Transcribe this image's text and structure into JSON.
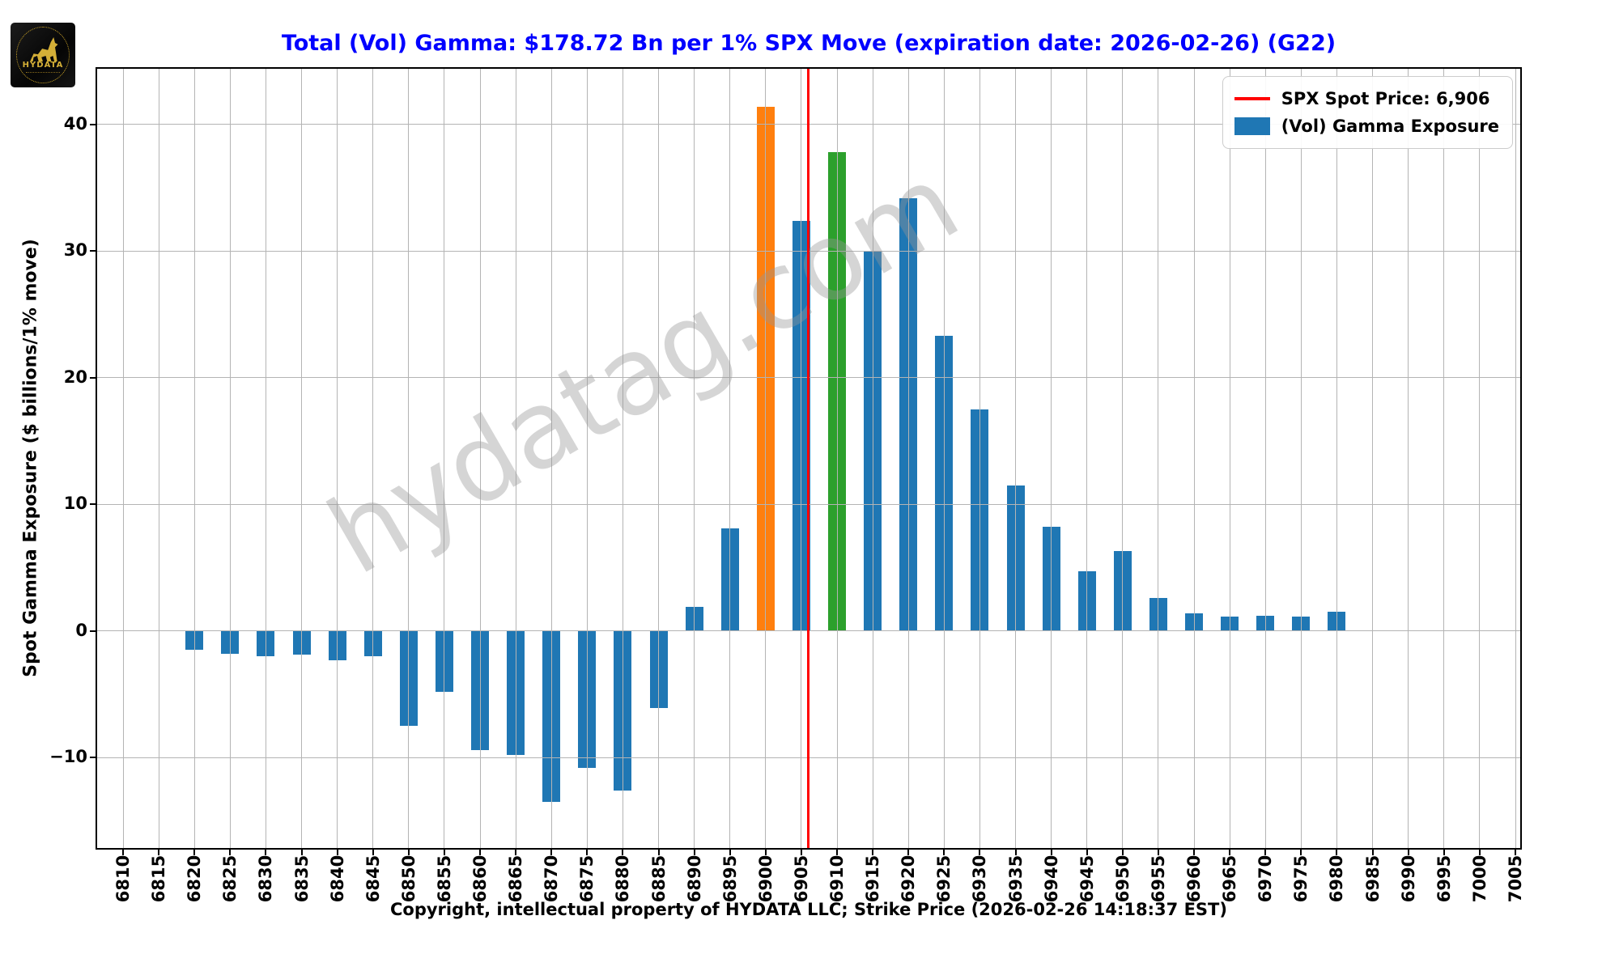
{
  "header": {
    "title": "Total (Vol) Gamma: $178.72 Bn per 1% SPX Move (expiration date: 2026-02-26) (G22)",
    "title_color": "#0000ff",
    "logo": {
      "brand": "HYDATA"
    }
  },
  "chart_data": {
    "type": "bar",
    "title": "Total (Vol) Gamma: $178.72 Bn per 1% SPX Move (expiration date: 2026-02-26) (G22)",
    "categories": [
      "6810",
      "6815",
      "6820",
      "6825",
      "6830",
      "6835",
      "6840",
      "6845",
      "6850",
      "6855",
      "6860",
      "6865",
      "6870",
      "6875",
      "6880",
      "6885",
      "6890",
      "6895",
      "6900",
      "6905",
      "6910",
      "6915",
      "6920",
      "6925",
      "6930",
      "6935",
      "6940",
      "6945",
      "6950",
      "6955",
      "6960",
      "6965",
      "6970",
      "6975",
      "6980",
      "6985",
      "6990",
      "6995",
      "7000",
      "7005"
    ],
    "values": [
      0,
      0,
      -1.5,
      -1.8,
      -2.0,
      -1.9,
      -2.3,
      -2.0,
      -7.5,
      -4.8,
      -9.4,
      -9.8,
      -13.5,
      -10.8,
      -12.6,
      -6.1,
      1.9,
      8.1,
      41.4,
      32.4,
      37.8,
      30.0,
      34.2,
      23.3,
      17.5,
      11.5,
      8.2,
      4.7,
      6.3,
      2.6,
      1.4,
      1.1,
      1.2,
      1.1,
      1.5,
      0,
      0,
      0,
      0,
      0
    ],
    "bar_default_color": "#1f77b4",
    "bar_color_overrides": {
      "6900": "#ff7f0e",
      "6910": "#2ca02c"
    },
    "ylabel": "Spot Gamma Exposure ($ billions/1% move)",
    "xlabel": "Copyright, intellectual property of HYDATA LLC; Strike Price (2026-02-26 14:18:37 EST)",
    "ylim": [
      -17.15,
      44.4
    ],
    "yticks": [
      {
        "value": 40,
        "label": "40"
      },
      {
        "value": 30,
        "label": "30"
      },
      {
        "value": 20,
        "label": "20"
      },
      {
        "value": 10,
        "label": "10"
      },
      {
        "value": 0,
        "label": "0"
      },
      {
        "value": -10,
        "label": "−10"
      }
    ],
    "grid": true,
    "legend_position": "upper right",
    "spot_line": {
      "x_value": 6906,
      "color": "#ff0000",
      "strike_min": 6810,
      "strike_step": 5
    }
  },
  "legend": {
    "items": [
      {
        "label": "SPX Spot Price: 6,906",
        "swatch": "line",
        "color": "#ff0000"
      },
      {
        "label": "(Vol) Gamma Exposure",
        "swatch": "rect",
        "color": "#1f77b4"
      }
    ]
  },
  "watermark": {
    "text": "hydatag.com"
  },
  "caption": {
    "text": "Copyright, intellectual property of HYDATA LLC; Strike Price (2026-02-26 14:18:37 EST)"
  },
  "colors": {
    "grid": "#b4b4b4",
    "axis": "#000000"
  }
}
